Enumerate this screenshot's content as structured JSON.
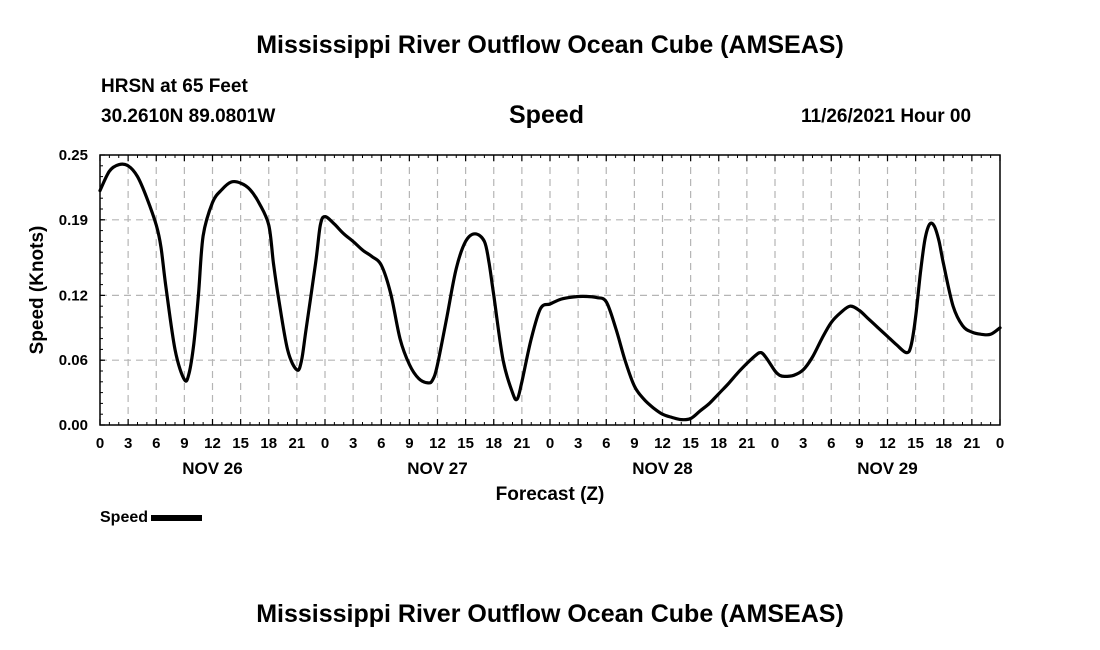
{
  "page": {
    "title": "Mississippi River Outflow Ocean Cube (AMSEAS)",
    "bottom_title": "Mississippi River Outflow Ocean Cube (AMSEAS)",
    "station": "HRSN at 65 Feet",
    "coords": "30.2610N  89.0801W",
    "variable": "Speed",
    "issued": "11/26/2021 Hour 00",
    "legend_label": "Speed"
  },
  "chart_data": {
    "type": "line",
    "title": "Speed",
    "xlabel": "Forecast (Z)",
    "ylabel": "Speed (Knots)",
    "xlim": [
      0,
      96
    ],
    "ylim": [
      0,
      0.25
    ],
    "yticks": [
      0.0,
      0.06,
      0.12,
      0.19,
      0.25
    ],
    "ytick_labels": [
      "0.00",
      "0.06",
      "0.12",
      "0.19",
      "0.25"
    ],
    "xtick_labels": [
      "0",
      "3",
      "6",
      "9",
      "12",
      "15",
      "18",
      "21",
      "0",
      "3",
      "6",
      "9",
      "12",
      "15",
      "18",
      "21",
      "0",
      "3",
      "6",
      "9",
      "12",
      "15",
      "18",
      "21",
      "0",
      "3",
      "6",
      "9",
      "12",
      "15",
      "18",
      "21",
      "0"
    ],
    "day_labels": [
      {
        "label": "NOV 26",
        "hour": 12
      },
      {
        "label": "NOV 27",
        "hour": 36
      },
      {
        "label": "NOV 28",
        "hour": 60
      },
      {
        "label": "NOV 29",
        "hour": 84
      }
    ],
    "grid": true,
    "legend_position": "bottom-left",
    "series": [
      {
        "name": "Speed",
        "color": "#000000",
        "points": [
          [
            0,
            0.217
          ],
          [
            1,
            0.235
          ],
          [
            2,
            0.241
          ],
          [
            3,
            0.24
          ],
          [
            4,
            0.23
          ],
          [
            5,
            0.21
          ],
          [
            6,
            0.185
          ],
          [
            6.5,
            0.165
          ],
          [
            7,
            0.13
          ],
          [
            8,
            0.07
          ],
          [
            9,
            0.042
          ],
          [
            9.5,
            0.048
          ],
          [
            10,
            0.075
          ],
          [
            10.5,
            0.12
          ],
          [
            11,
            0.175
          ],
          [
            12,
            0.206
          ],
          [
            13,
            0.218
          ],
          [
            14,
            0.225
          ],
          [
            15,
            0.224
          ],
          [
            16,
            0.218
          ],
          [
            17,
            0.205
          ],
          [
            18,
            0.185
          ],
          [
            18.5,
            0.15
          ],
          [
            19,
            0.12
          ],
          [
            20,
            0.07
          ],
          [
            21,
            0.051
          ],
          [
            21.5,
            0.06
          ],
          [
            22,
            0.09
          ],
          [
            23,
            0.15
          ],
          [
            23.5,
            0.185
          ],
          [
            24,
            0.193
          ],
          [
            25,
            0.186
          ],
          [
            26,
            0.177
          ],
          [
            27,
            0.17
          ],
          [
            28,
            0.162
          ],
          [
            29,
            0.156
          ],
          [
            30,
            0.148
          ],
          [
            31,
            0.122
          ],
          [
            32,
            0.08
          ],
          [
            33,
            0.056
          ],
          [
            34,
            0.043
          ],
          [
            35,
            0.039
          ],
          [
            35.5,
            0.042
          ],
          [
            36,
            0.056
          ],
          [
            37,
            0.1
          ],
          [
            38,
            0.145
          ],
          [
            39,
            0.17
          ],
          [
            40,
            0.177
          ],
          [
            41,
            0.17
          ],
          [
            41.5,
            0.15
          ],
          [
            42,
            0.12
          ],
          [
            43,
            0.06
          ],
          [
            44,
            0.03
          ],
          [
            44.5,
            0.024
          ],
          [
            45,
            0.04
          ],
          [
            46,
            0.08
          ],
          [
            47,
            0.108
          ],
          [
            48,
            0.112
          ],
          [
            49,
            0.116
          ],
          [
            50,
            0.118
          ],
          [
            51,
            0.119
          ],
          [
            52,
            0.119
          ],
          [
            53,
            0.118
          ],
          [
            54,
            0.114
          ],
          [
            55,
            0.09
          ],
          [
            56,
            0.06
          ],
          [
            57,
            0.036
          ],
          [
            58,
            0.024
          ],
          [
            59,
            0.016
          ],
          [
            60,
            0.01
          ],
          [
            61,
            0.007
          ],
          [
            62,
            0.005
          ],
          [
            63,
            0.006
          ],
          [
            64,
            0.013
          ],
          [
            65,
            0.02
          ],
          [
            66,
            0.029
          ],
          [
            67,
            0.038
          ],
          [
            68,
            0.048
          ],
          [
            69,
            0.057
          ],
          [
            70,
            0.065
          ],
          [
            70.5,
            0.067
          ],
          [
            71,
            0.063
          ],
          [
            72,
            0.05
          ],
          [
            72.5,
            0.046
          ],
          [
            73,
            0.045
          ],
          [
            74,
            0.046
          ],
          [
            75,
            0.051
          ],
          [
            76,
            0.063
          ],
          [
            77,
            0.08
          ],
          [
            78,
            0.095
          ],
          [
            79,
            0.104
          ],
          [
            80,
            0.11
          ],
          [
            81,
            0.106
          ],
          [
            82,
            0.098
          ],
          [
            83,
            0.09
          ],
          [
            84,
            0.082
          ],
          [
            85,
            0.074
          ],
          [
            86,
            0.067
          ],
          [
            86.5,
            0.073
          ],
          [
            87,
            0.1
          ],
          [
            87.5,
            0.14
          ],
          [
            88,
            0.172
          ],
          [
            88.5,
            0.186
          ],
          [
            89,
            0.184
          ],
          [
            89.5,
            0.17
          ],
          [
            90,
            0.148
          ],
          [
            91,
            0.11
          ],
          [
            92,
            0.092
          ],
          [
            93,
            0.086
          ],
          [
            94,
            0.084
          ],
          [
            95,
            0.084
          ],
          [
            96,
            0.09
          ]
        ]
      }
    ]
  }
}
